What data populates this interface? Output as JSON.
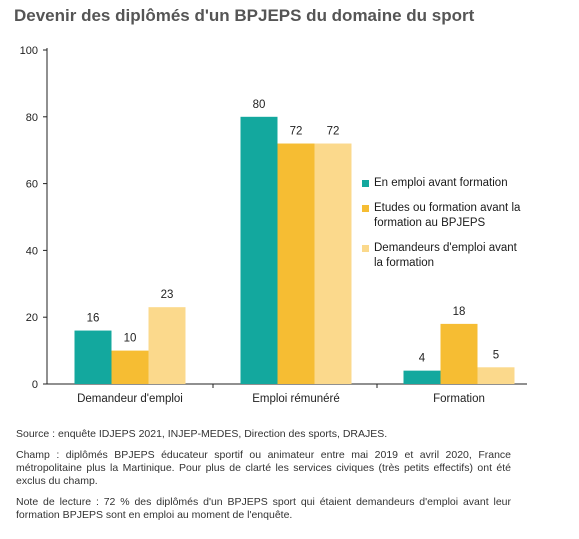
{
  "chart_data": {
    "type": "bar",
    "title": "Devenir des diplômés d'un BPJEPS du domaine du sport",
    "categories": [
      "Demandeur d'emploi",
      "Emploi rémunéré",
      "Formation"
    ],
    "series": [
      {
        "name": "En emploi avant formation",
        "color": "#13a89e",
        "values": [
          16,
          80,
          4
        ]
      },
      {
        "name": "Etudes ou formation avant la formation au BPJEPS",
        "color": "#f6bd33",
        "values": [
          10,
          72,
          18
        ]
      },
      {
        "name": "Demandeurs d'emploi avant la formation",
        "color": "#fbd98c",
        "values": [
          23,
          72,
          5
        ]
      }
    ],
    "ylim": [
      0,
      100
    ],
    "yticks": [
      0,
      20,
      40,
      60,
      80,
      100
    ],
    "grid": false,
    "legend_position": "right"
  },
  "legend": {
    "items": [
      {
        "line1": "En emploi avant formation",
        "line2": ""
      },
      {
        "line1": "Etudes ou formation avant la",
        "line2": "formation au BPJEPS"
      },
      {
        "line1": "Demandeurs d'emploi avant",
        "line2": "la formation"
      }
    ]
  },
  "notes": {
    "source": "Source : enquête IDJEPS 2021, INJEP-MEDES, Direction des sports, DRAJES.",
    "champ": "Champ : diplômés BPJEPS éducateur sportif ou animateur entre mai 2019 et avril 2020, France métropolitaine plus la Martinique. Pour plus de clarté les services civiques (très petits effectifs) ont été exclus du champ.",
    "lecture": "Note de lecture : 72 % des diplômés d'un BPJEPS sport qui étaient demandeurs d'emploi avant leur formation BPJEPS sont en emploi au moment de l'enquête."
  }
}
